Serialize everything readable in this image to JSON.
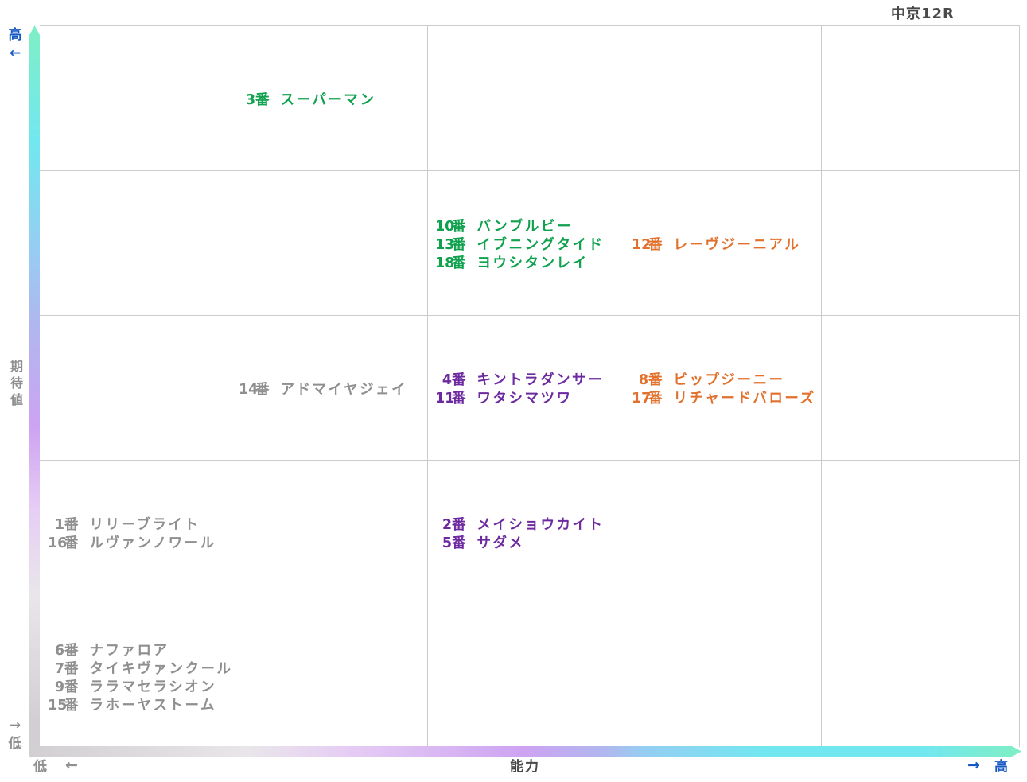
{
  "colors": {
    "green": "#10a14e",
    "orange": "#e1712d",
    "purple": "#6d2aa0",
    "gray": "#8f8f8f",
    "blue": "#1759c4",
    "title_text": "#4a4a4a",
    "grid_line": "#cbcbcb"
  },
  "gradient": {
    "mint": "#7fefc4",
    "cyan": "#72e7f0",
    "sky": "#95cef2",
    "periwinkle": "#b0b7ee",
    "purple": "#cda3f2",
    "pale_purple": "#e6cdf4",
    "pale_gray": "#e9e6ea",
    "gray": "#d2cfd2"
  },
  "chart_data": {
    "type": "scatter",
    "title": "中京12R",
    "xlabel": "能力",
    "ylabel": "期待値",
    "num_suffix": "番",
    "x_axis": {
      "label": "能力",
      "low": "低",
      "high": "高",
      "low_arrow": "←",
      "high_arrow": "→"
    },
    "y_axis": {
      "label": "期待値",
      "low": "低",
      "high": "高",
      "high_arrow": "←",
      "low_arrow": "→"
    },
    "grid": {
      "cols": 5,
      "rows": 5,
      "x_range_semantic": "ability 1(low)-5(high)",
      "y_range_semantic": "expectation 1(low)-5(high)"
    },
    "groups": [
      {
        "ability": 2,
        "expectation": 5,
        "color_key": "green",
        "horses": [
          {
            "num": "3",
            "name": "スーパーマン"
          }
        ]
      },
      {
        "ability": 3,
        "expectation": 4,
        "color_key": "green",
        "horses": [
          {
            "num": "10",
            "name": "バンブルビー"
          },
          {
            "num": "13",
            "name": "イブニングタイド"
          },
          {
            "num": "18",
            "name": "ヨウシタンレイ"
          }
        ]
      },
      {
        "ability": 4,
        "expectation": 4,
        "color_key": "orange",
        "horses": [
          {
            "num": "12",
            "name": "レーヴジーニアル"
          }
        ]
      },
      {
        "ability": 2,
        "expectation": 3,
        "color_key": "gray",
        "horses": [
          {
            "num": "14",
            "name": "アドマイヤジェイ"
          }
        ]
      },
      {
        "ability": 3,
        "expectation": 3,
        "color_key": "purple",
        "horses": [
          {
            "num": "4",
            "name": "キントラダンサー"
          },
          {
            "num": "11",
            "name": "ワタシマツワ"
          }
        ]
      },
      {
        "ability": 4,
        "expectation": 3,
        "color_key": "orange",
        "horses": [
          {
            "num": "8",
            "name": "ビップジーニー"
          },
          {
            "num": "17",
            "name": "リチャードバローズ"
          }
        ]
      },
      {
        "ability": 1,
        "expectation": 2,
        "color_key": "gray",
        "horses": [
          {
            "num": "1",
            "name": "リリーブライト"
          },
          {
            "num": "16",
            "name": "ルヴァンノワール"
          }
        ]
      },
      {
        "ability": 3,
        "expectation": 2,
        "color_key": "purple",
        "horses": [
          {
            "num": "2",
            "name": "メイショウカイト"
          },
          {
            "num": "5",
            "name": "サダメ"
          }
        ]
      },
      {
        "ability": 1,
        "expectation": 1,
        "color_key": "gray",
        "horses": [
          {
            "num": "6",
            "name": "ナファロア"
          },
          {
            "num": "7",
            "name": "タイキヴァンクール"
          },
          {
            "num": "9",
            "name": "ララマセラシオン"
          },
          {
            "num": "15",
            "name": "ラホーヤストーム"
          }
        ]
      }
    ]
  }
}
